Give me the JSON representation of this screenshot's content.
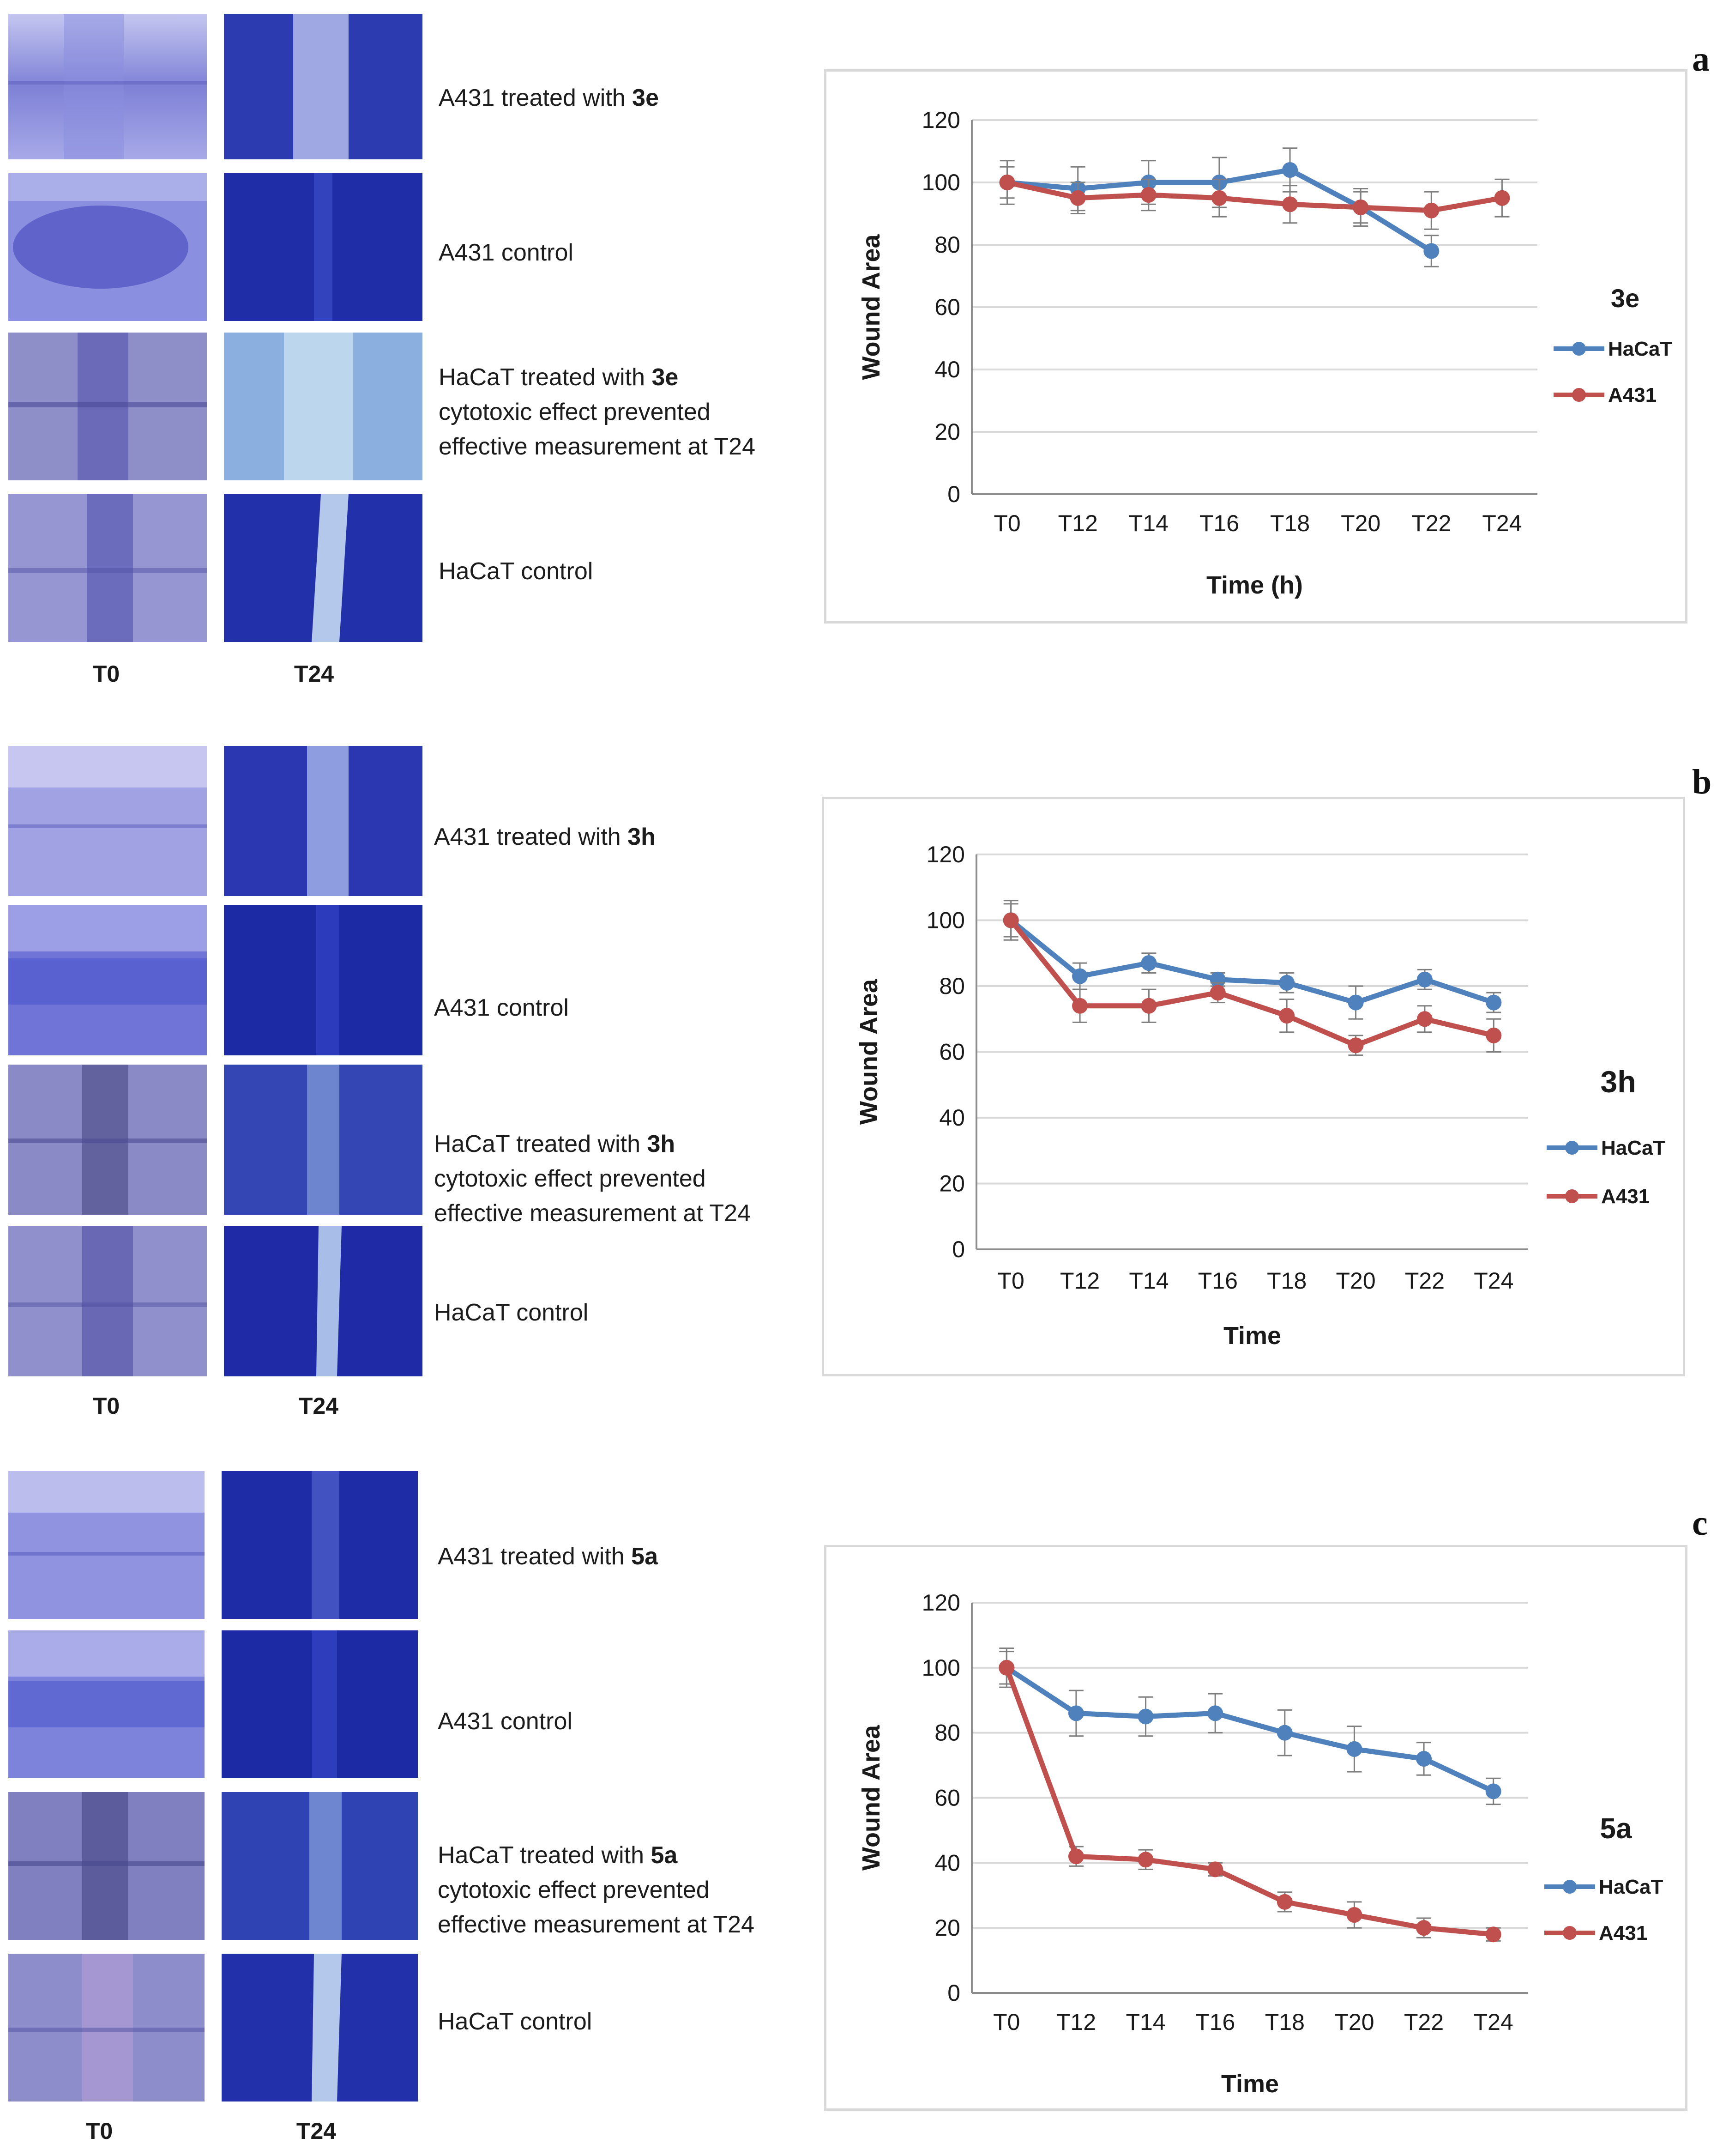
{
  "colors": {
    "hacat": "#4f81bd",
    "a431": "#c0504d",
    "grid": "#d9d9d9",
    "axis": "#8c8c8c",
    "error": "#7f7f7f"
  },
  "panels": [
    {
      "letter": "a",
      "compound": "3e",
      "labels": {
        "t0": "T0",
        "t24": "T24"
      },
      "rows": [
        {
          "line1_prefix": "A431 treated with ",
          "line1_bold": "3e",
          "line2": "",
          "line3": ""
        },
        {
          "line1_prefix": "A431 control",
          "line1_bold": "",
          "line2": "",
          "line3": ""
        },
        {
          "line1_prefix": "HaCaT treated with ",
          "line1_bold": "3e",
          "line2": "cytotoxic effect prevented",
          "line3": "effective measurement at T24"
        },
        {
          "line1_prefix": "HaCaT control",
          "line1_bold": "",
          "line2": "",
          "line3": ""
        }
      ]
    },
    {
      "letter": "b",
      "compound": "3h",
      "labels": {
        "t0": "T0",
        "t24": "T24"
      },
      "rows": [
        {
          "line1_prefix": "A431 treated with ",
          "line1_bold": "3h",
          "line2": "",
          "line3": ""
        },
        {
          "line1_prefix": "A431 control",
          "line1_bold": "",
          "line2": "",
          "line3": ""
        },
        {
          "line1_prefix": "HaCaT treated with ",
          "line1_bold": "3h",
          "line2": "cytotoxic effect prevented",
          "line3": "effective measurement at T24"
        },
        {
          "line1_prefix": "HaCaT control",
          "line1_bold": "",
          "line2": "",
          "line3": ""
        }
      ]
    },
    {
      "letter": "c",
      "compound": "5a",
      "labels": {
        "t0": "T0",
        "t24": "T24"
      },
      "rows": [
        {
          "line1_prefix": "A431 treated with ",
          "line1_bold": "5a",
          "line2": "",
          "line3": ""
        },
        {
          "line1_prefix": "A431 control",
          "line1_bold": "",
          "line2": "",
          "line3": ""
        },
        {
          "line1_prefix": "HaCaT treated with ",
          "line1_bold": "5a",
          "line2": "cytotoxic effect prevented",
          "line3": "effective measurement at T24"
        },
        {
          "line1_prefix": "HaCaT control",
          "line1_bold": "",
          "line2": "",
          "line3": ""
        }
      ]
    }
  ],
  "chart_data": [
    {
      "type": "line",
      "title": "3e",
      "xlabel": "Time (h)",
      "ylabel": "Wound Area",
      "ylim": [
        0,
        120
      ],
      "yticks": [
        0,
        20,
        40,
        60,
        80,
        100,
        120
      ],
      "categories": [
        "T0",
        "T12",
        "T14",
        "T16",
        "T18",
        "T20",
        "T22",
        "T24"
      ],
      "legend_title": "3e",
      "legend_position": "right",
      "series": [
        {
          "name": "HaCaT",
          "values": [
            100,
            98,
            100,
            100,
            104,
            92,
            78,
            null
          ],
          "errors": [
            7,
            7,
            7,
            8,
            7,
            6,
            5,
            null
          ]
        },
        {
          "name": "A431",
          "values": [
            100,
            95,
            96,
            95,
            93,
            92,
            91,
            95
          ],
          "errors": [
            5,
            5,
            5,
            6,
            6,
            5,
            6,
            6
          ]
        }
      ]
    },
    {
      "type": "line",
      "title": "3h",
      "xlabel": "Time",
      "ylabel": "Wound Area",
      "ylim": [
        0,
        120
      ],
      "yticks": [
        0,
        20,
        40,
        60,
        80,
        100,
        120
      ],
      "categories": [
        "T0",
        "T12",
        "T14",
        "T16",
        "T18",
        "T20",
        "T22",
        "T24"
      ],
      "legend_title": "3h",
      "legend_position": "right",
      "series": [
        {
          "name": "HaCaT",
          "values": [
            100,
            83,
            87,
            82,
            81,
            75,
            82,
            75
          ],
          "errors": [
            5,
            4,
            3,
            2,
            3,
            5,
            3,
            3
          ]
        },
        {
          "name": "A431",
          "values": [
            100,
            74,
            74,
            78,
            71,
            62,
            70,
            65
          ],
          "errors": [
            6,
            5,
            5,
            3,
            5,
            3,
            4,
            5
          ]
        }
      ]
    },
    {
      "type": "line",
      "title": "5a",
      "xlabel": "Time",
      "ylabel": "Wound Area",
      "ylim": [
        0,
        120
      ],
      "yticks": [
        0,
        20,
        40,
        60,
        80,
        100,
        120
      ],
      "categories": [
        "T0",
        "T12",
        "T14",
        "T16",
        "T18",
        "T20",
        "T22",
        "T24"
      ],
      "legend_title": "5a",
      "legend_position": "right",
      "series": [
        {
          "name": "HaCaT",
          "values": [
            100,
            86,
            85,
            86,
            80,
            75,
            72,
            62
          ],
          "errors": [
            5,
            7,
            6,
            6,
            7,
            7,
            5,
            4
          ]
        },
        {
          "name": "A431",
          "values": [
            100,
            42,
            41,
            38,
            28,
            24,
            20,
            18
          ],
          "errors": [
            6,
            3,
            3,
            2,
            3,
            4,
            3,
            2
          ]
        }
      ]
    }
  ]
}
